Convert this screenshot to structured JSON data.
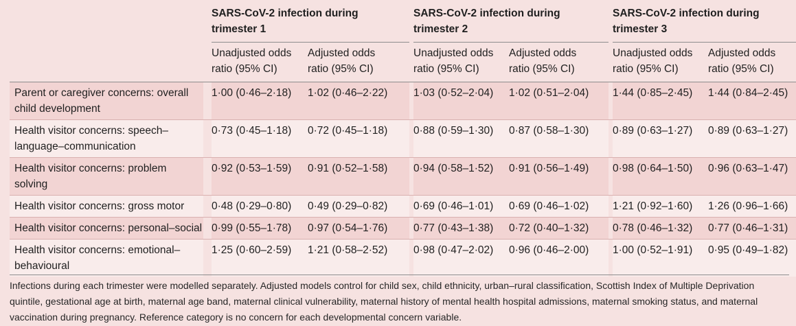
{
  "groups": [
    {
      "line1": "SARS-CoV-2 infection during",
      "line2": "trimester 1"
    },
    {
      "line1": "SARS-CoV-2 infection during",
      "line2": "trimester 2"
    },
    {
      "line1": "SARS-CoV-2 infection during",
      "line2": "trimester 3"
    }
  ],
  "subheaders": {
    "unadj_1": "Unadjusted odds",
    "unadj_2": "ratio (95% CI)",
    "adj_1": "Adjusted odds",
    "adj_2": "ratio (95% CI)"
  },
  "rows": [
    {
      "label1": "Parent or caregiver concerns: overall",
      "label2": "child development",
      "values": [
        "1·00 (0·46–2·18)",
        "1·02 (0·46–2·22)",
        "1·03 (0·52–2·04)",
        "1·02 (0·51–2·04)",
        "1·44 (0·85–2·45)",
        "1·44 (0·84–2·45)"
      ]
    },
    {
      "label1": "Health visitor concerns: speech–",
      "label2": "language–communication",
      "values": [
        "0·73 (0·45–1·18)",
        "0·72 (0·45–1·18)",
        "0·88 (0·59–1·30)",
        "0·87 (0·58–1·30)",
        "0·89 (0·63–1·27)",
        "0·89 (0·63–1·27)"
      ]
    },
    {
      "label1": "Health visitor concerns: problem",
      "label2": "solving",
      "values": [
        "0·92 (0·53–1·59)",
        "0·91 (0·52–1·58)",
        "0·94 (0·58–1·52)",
        "0·91 (0·56–1·49)",
        "0·98 (0·64–1·50)",
        "0·96 (0·63–1·47)"
      ]
    },
    {
      "label1": "Health visitor concerns: gross motor",
      "label2": "",
      "values": [
        "0·48 (0·29–0·80)",
        "0·49 (0·29–0·82)",
        "0·69 (0·46–1·01)",
        "0·69 (0·46–1·02)",
        "1·21 (0·92–1·60)",
        "1·26 (0·96–1·66)"
      ]
    },
    {
      "label1": "Health visitor concerns: personal–social",
      "label2": "",
      "values": [
        "0·99 (0·55–1·78)",
        "0·97 (0·54–1·76)",
        "0·77 (0·43–1·38)",
        "0·72 (0·40–1·32)",
        "0·78 (0·46–1·32)",
        "0·77 (0·46–1·31)"
      ]
    },
    {
      "label1": "Health visitor concerns: emotional–",
      "label2": "behavioural",
      "values": [
        "1·25 (0·60–2·59)",
        "1·21 (0·58–2·52)",
        "0·98 (0·47–2·02)",
        "0·96 (0·46–2·00)",
        "1·00 (0·52–1·91)",
        "0·95 (0·49–1·82)"
      ]
    }
  ],
  "footnote": "Infections during each trimester were modelled separately. Adjusted models control for child sex, child ethnicity, urban–rural classification, Scottish Index of Multiple Deprivation quintile, gestational age at birth, maternal age band, maternal clinical vulnerability, maternal history of mental health hospital admissions, maternal smoking status, and maternal vaccination during pregnancy. Reference category is no concern for each developmental concern variable."
}
